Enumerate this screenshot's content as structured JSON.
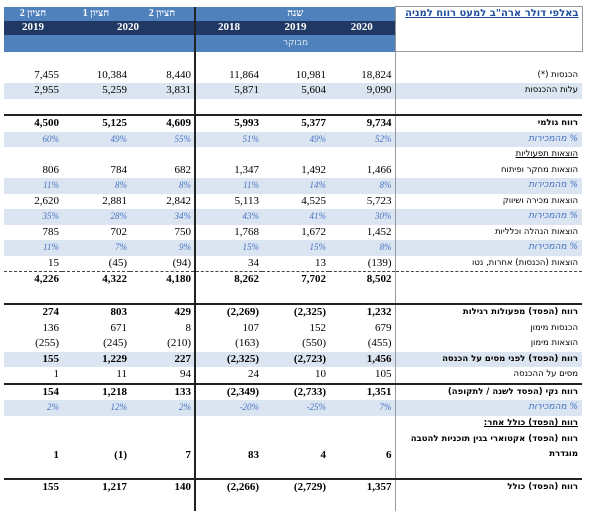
{
  "header": {
    "label": "באלפי דולר ארה\"ב למעט רווח למניה",
    "periods": [
      "חציון 2",
      "חציון 1",
      "חציון 2"
    ],
    "year_group": "שנה",
    "half_years": [
      "2019",
      "2020"
    ],
    "years": [
      "2018",
      "2019",
      "2020"
    ],
    "audited": "מבוקר"
  },
  "table": {
    "rows": [
      {
        "label": "הכנסות (*)",
        "values": [
          "7,455",
          "10,384",
          "8,440",
          "11,864",
          "10,981",
          "18,824"
        ]
      },
      {
        "label": "עלות ההכנסות",
        "values": [
          "2,955",
          "5,259",
          "3,831",
          "5,871",
          "5,604",
          "9,090"
        ]
      },
      {
        "label": "רווח גולמי",
        "values": [
          "4,500",
          "5,125",
          "4,609",
          "5,993",
          "5,377",
          "9,734"
        ]
      },
      {
        "label": "% מהמכירות",
        "values": [
          "60%",
          "49%",
          "55%",
          "51%",
          "49%",
          "52%"
        ]
      },
      {
        "label": "הוצאות תפעוליות"
      },
      {
        "label": "הוצאות מחקר ופיתוח",
        "values": [
          "806",
          "784",
          "682",
          "1,347",
          "1,492",
          "1,466"
        ]
      },
      {
        "label": "% מהמכירות",
        "values": [
          "11%",
          "8%",
          "8%",
          "11%",
          "14%",
          "8%"
        ]
      },
      {
        "label": "הוצאות מכירה ושיווק",
        "values": [
          "2,620",
          "2,881",
          "2,842",
          "5,113",
          "4,525",
          "5,723"
        ]
      },
      {
        "label": "% מהמכירות",
        "values": [
          "35%",
          "28%",
          "34%",
          "43%",
          "41%",
          "30%"
        ]
      },
      {
        "label": "הוצאות הנהלה וכלליות",
        "values": [
          "785",
          "702",
          "750",
          "1,768",
          "1,672",
          "1,452"
        ]
      },
      {
        "label": "% מהמכירות",
        "values": [
          "11%",
          "7%",
          "9%",
          "15%",
          "15%",
          "8%"
        ]
      },
      {
        "label": "הוצאות (הכנסות) אחרות, נטו",
        "values": [
          "15",
          "(45)",
          "(94)",
          "34",
          "13",
          "(139)"
        ]
      },
      {
        "label": null,
        "values": [
          "4,226",
          "4,322",
          "4,180",
          "8,262",
          "7,702",
          "8,502"
        ]
      },
      {
        "label": "רווח (הפסד) מפעולות רגילות",
        "values": [
          "274",
          "803",
          "429",
          "(2,269)",
          "(2,325)",
          "1,232"
        ]
      },
      {
        "label": "הכנסות מימון",
        "values": [
          "136",
          "671",
          "8",
          "107",
          "152",
          "679"
        ]
      },
      {
        "label": "הוצאות מימון",
        "values": [
          "(255)",
          "(245)",
          "(210)",
          "(163)",
          "(550)",
          "(455)"
        ]
      },
      {
        "label": "רווח (הפסד) לפני מסים על הכנסה",
        "values": [
          "155",
          "1,229",
          "227",
          "(2,325)",
          "(2,723)",
          "1,456"
        ]
      },
      {
        "label": "מסים על ההכנסה",
        "values": [
          "1",
          "11",
          "94",
          "24",
          "10",
          "105"
        ]
      },
      {
        "label": "רווח נקי (הפסד לשנה / לתקופה)",
        "values": [
          "154",
          "1,218",
          "133",
          "(2,349)",
          "(2,733)",
          "1,351"
        ]
      },
      {
        "label": "% מהמכירות",
        "values": [
          "2%",
          "12%",
          "2%",
          "-20%",
          "-25%",
          "7%"
        ]
      },
      {
        "label": "רווח (הפסד) כולל אחר:"
      },
      {
        "label": "רווח (הפסד) אקטוארי בגין תוכניות להטבה מוגדרת",
        "values": [
          "1",
          "(1)",
          "7",
          "83",
          "4",
          "6"
        ]
      },
      {
        "label": "רווח (הפסד) כולל",
        "values": [
          "155",
          "1,217",
          "140",
          "(2,266)",
          "(2,729)",
          "1,357"
        ]
      }
    ]
  }
}
